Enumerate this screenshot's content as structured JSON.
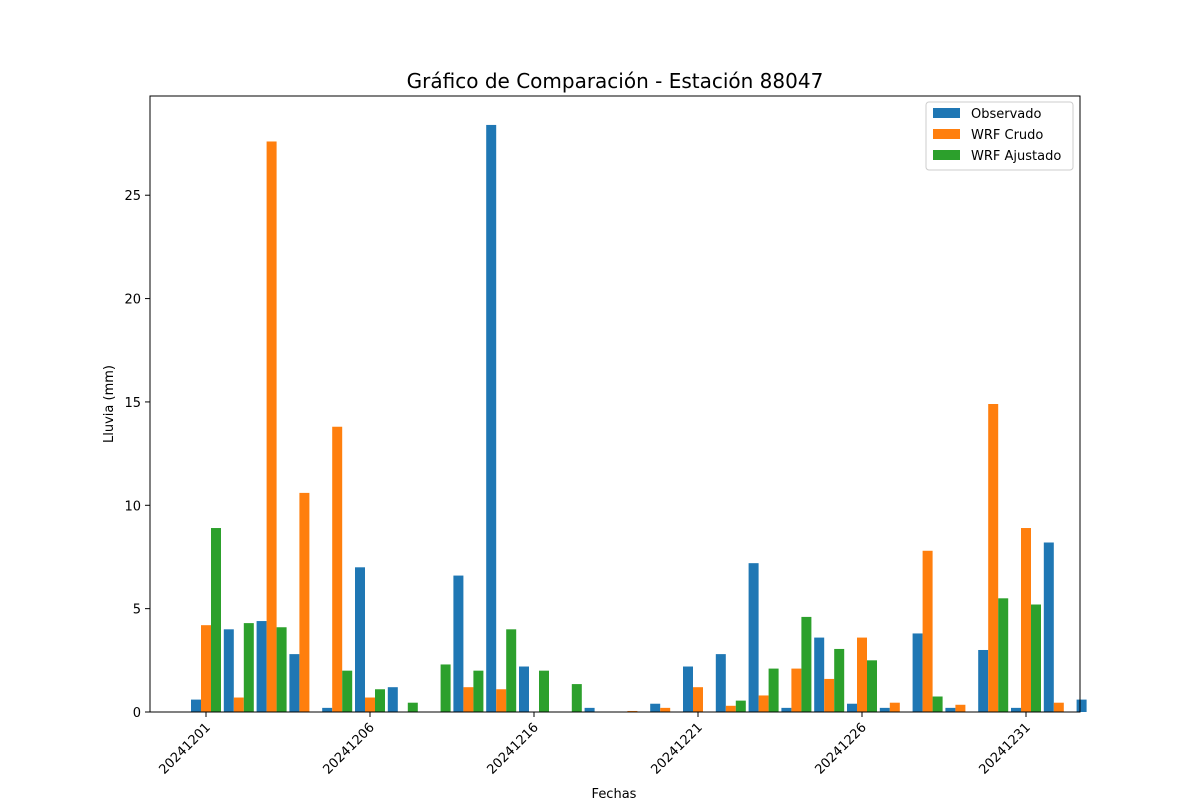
{
  "chart_data": {
    "type": "bar",
    "title": "Gráfico de Comparación - Estación 88047",
    "xlabel": "Fechas",
    "ylabel": "Lluvia (mm)",
    "ylim": [
      0,
      29.8
    ],
    "yticks": [
      "0",
      "5",
      "10",
      "15",
      "20",
      "25"
    ],
    "ytick_values": [
      0,
      5,
      10,
      15,
      20,
      25
    ],
    "xtick_labels": [
      "20241201",
      "20241206",
      "20241216",
      "20241221",
      "20241226",
      "20241231"
    ],
    "legend_position": "top-right",
    "grid": false,
    "series": [
      {
        "name": "Observado",
        "color": "#1f77b4",
        "values": [
          0.6,
          4.0,
          4.4,
          2.8,
          0.2,
          7.0,
          1.2,
          0.0,
          6.6,
          28.4,
          2.2,
          0.0,
          0.2,
          0.0,
          0.4,
          2.2,
          2.8,
          7.2,
          0.2,
          3.6,
          0.4,
          0.2,
          3.8,
          0.2,
          3.0,
          0.2,
          8.2,
          0.6
        ]
      },
      {
        "name": "WRF Crudo",
        "color": "#ff7f0e",
        "values": [
          4.2,
          0.7,
          27.6,
          10.6,
          13.8,
          0.7,
          0.0,
          0.0,
          1.2,
          1.1,
          0.0,
          0.0,
          0.0,
          0.05,
          0.2,
          1.2,
          0.3,
          0.8,
          2.1,
          1.6,
          3.6,
          0.45,
          7.8,
          0.35,
          14.9,
          8.9,
          0.45,
          0.0
        ]
      },
      {
        "name": "WRF Ajustado",
        "color": "#2ca02c",
        "values": [
          8.9,
          4.3,
          4.1,
          0.0,
          2.0,
          1.1,
          0.45,
          2.3,
          2.0,
          4.0,
          2.0,
          1.35,
          0.0,
          0.0,
          0.0,
          0.0,
          0.55,
          2.1,
          4.6,
          3.05,
          2.5,
          0.0,
          0.75,
          0.0,
          5.5,
          5.2,
          0.0,
          0.0
        ]
      }
    ]
  }
}
